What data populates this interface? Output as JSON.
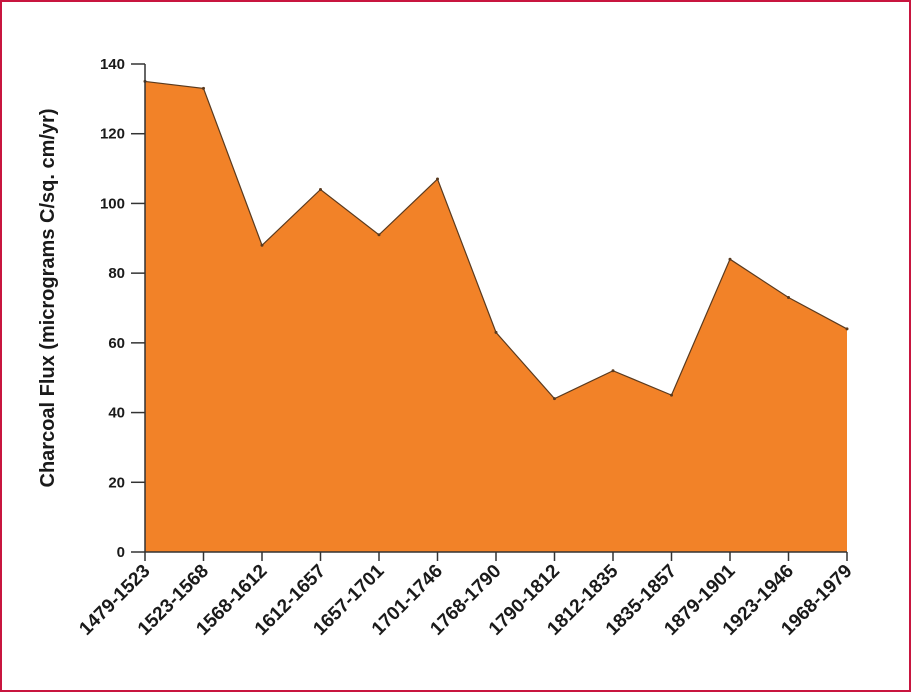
{
  "colors": {
    "border": "#c8153f",
    "area_fill": "#f28228",
    "area_stroke": "#5a3a1e",
    "axis": "#333333"
  },
  "chart_data": {
    "type": "area",
    "title": "",
    "xlabel": "",
    "ylabel": "Charcoal Flux (micrograms C/sq. cm/yr)",
    "categories": [
      "1479-1523",
      "1523-1568",
      "1568-1612",
      "1612-1657",
      "1657-1701",
      "1701-1746",
      "1768-1790",
      "1790-1812",
      "1812-1835",
      "1835-1857",
      "1879-1901",
      "1923-1946",
      "1968-1979"
    ],
    "values": [
      135,
      133,
      88,
      104,
      91,
      107,
      63,
      44,
      52,
      45,
      84,
      73,
      64
    ],
    "ylim": [
      0,
      140
    ],
    "yticks": [
      0,
      20,
      40,
      60,
      80,
      100,
      120,
      140
    ],
    "grid": false,
    "legend": "none"
  }
}
